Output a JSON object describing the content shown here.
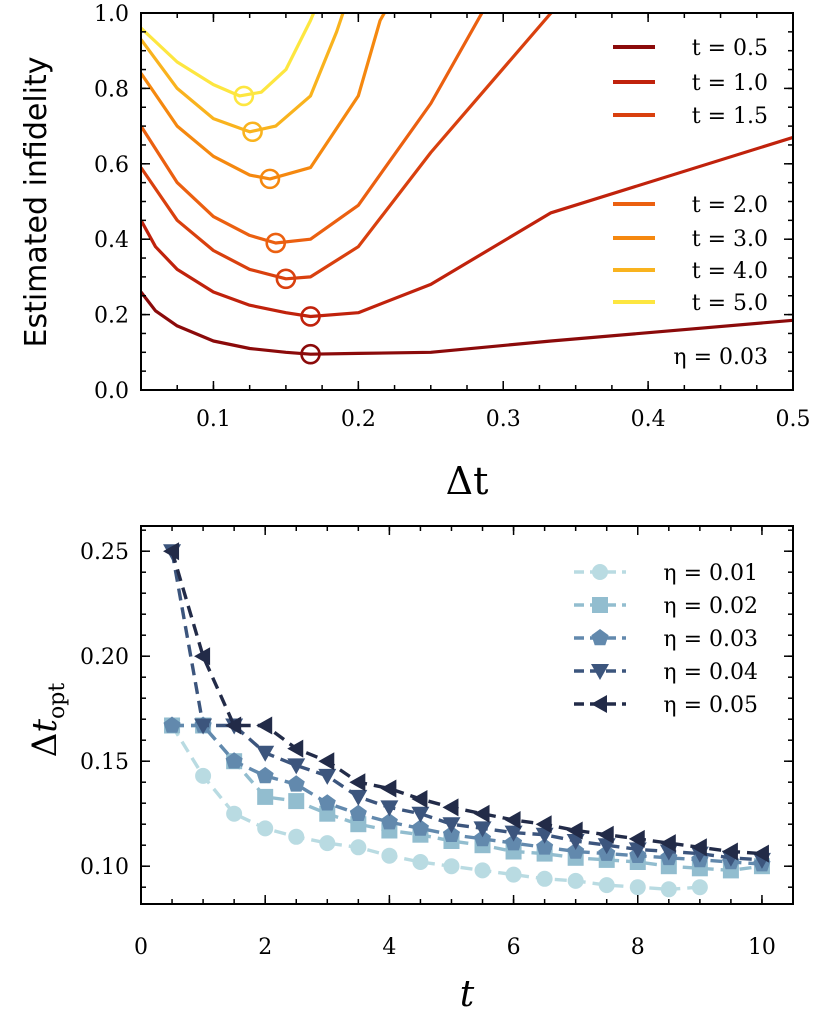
{
  "chart_data": [
    {
      "type": "line",
      "ylabel": "Estimated infidelity",
      "xlabel": "Δt",
      "xlim": [
        0.05,
        0.5
      ],
      "ylim": [
        0.0,
        1.0
      ],
      "xticks": [
        "0.1",
        "0.2",
        "0.3",
        "0.4",
        "0.5"
      ],
      "yticks": [
        "0.0",
        "0.2",
        "0.4",
        "0.6",
        "0.8",
        "1.0"
      ],
      "annotation": "η = 0.03",
      "legend_position": "right",
      "series": [
        {
          "name": "t = 0.5",
          "color": "#8b0a0a",
          "x": [
            0.05,
            0.06,
            0.075,
            0.1,
            0.125,
            0.15,
            0.167,
            0.2,
            0.25,
            0.333,
            0.5
          ],
          "y": [
            0.26,
            0.21,
            0.17,
            0.13,
            0.11,
            0.1,
            0.095,
            0.097,
            0.1,
            0.13,
            0.185
          ],
          "opt": {
            "x": 0.167,
            "y": 0.095
          }
        },
        {
          "name": "t = 1.0",
          "color": "#c0220c",
          "x": [
            0.05,
            0.06,
            0.075,
            0.1,
            0.125,
            0.15,
            0.167,
            0.2,
            0.25,
            0.333,
            0.5
          ],
          "y": [
            0.45,
            0.38,
            0.32,
            0.26,
            0.225,
            0.205,
            0.195,
            0.205,
            0.28,
            0.47,
            0.67
          ],
          "opt": {
            "x": 0.167,
            "y": 0.195
          }
        },
        {
          "name": "t = 1.5",
          "color": "#d9400e",
          "x": [
            0.05,
            0.075,
            0.1,
            0.125,
            0.15,
            0.167,
            0.2,
            0.25,
            0.333,
            0.38
          ],
          "y": [
            0.59,
            0.45,
            0.37,
            0.32,
            0.295,
            0.3,
            0.38,
            0.63,
            1.0,
            1.12
          ],
          "opt": {
            "x": 0.15,
            "y": 0.295
          }
        },
        {
          "name": "t = 2.0",
          "color": "#eb6010",
          "x": [
            0.05,
            0.075,
            0.1,
            0.125,
            0.143,
            0.167,
            0.2,
            0.25,
            0.3
          ],
          "y": [
            0.7,
            0.55,
            0.46,
            0.41,
            0.39,
            0.4,
            0.49,
            0.76,
            1.1
          ],
          "opt": {
            "x": 0.143,
            "y": 0.39
          }
        },
        {
          "name": "t = 3.0",
          "color": "#f5880f",
          "x": [
            0.05,
            0.075,
            0.1,
            0.125,
            0.139,
            0.167,
            0.2,
            0.215,
            0.24
          ],
          "y": [
            0.84,
            0.7,
            0.62,
            0.57,
            0.56,
            0.59,
            0.78,
            0.98,
            1.15
          ],
          "opt": {
            "x": 0.139,
            "y": 0.56
          }
        },
        {
          "name": "t = 4.0",
          "color": "#f9b31e",
          "x": [
            0.05,
            0.075,
            0.1,
            0.125,
            0.143,
            0.167,
            0.185,
            0.2
          ],
          "y": [
            0.93,
            0.8,
            0.72,
            0.685,
            0.7,
            0.78,
            0.95,
            1.12
          ],
          "opt": {
            "x": 0.127,
            "y": 0.685
          }
        },
        {
          "name": "t = 5.0",
          "color": "#fde640",
          "x": [
            0.05,
            0.075,
            0.1,
            0.118,
            0.133,
            0.15,
            0.167,
            0.18
          ],
          "y": [
            0.96,
            0.87,
            0.81,
            0.78,
            0.79,
            0.85,
            0.98,
            1.1
          ],
          "opt": {
            "x": 0.121,
            "y": 0.78
          }
        }
      ]
    },
    {
      "type": "line",
      "ylabel": "Δt_opt",
      "xlabel": "t",
      "xlim": [
        0,
        10.5
      ],
      "ylim": [
        0.082,
        0.262
      ],
      "xticks": [
        "0",
        "2",
        "4",
        "6",
        "8",
        "10"
      ],
      "yticks": [
        "0.10",
        "0.15",
        "0.20",
        "0.25"
      ],
      "legend_position": "top-right",
      "series": [
        {
          "name": "η = 0.01",
          "color": "#b9dbe2",
          "marker": "circle",
          "x": [
            0.5,
            1.0,
            1.5,
            2.0,
            2.5,
            3.0,
            3.5,
            4.0,
            4.5,
            5.0,
            5.5,
            6.0,
            6.5,
            7.0,
            7.5,
            8.0,
            8.5,
            9.0
          ],
          "y": [
            0.167,
            0.143,
            0.125,
            0.118,
            0.114,
            0.111,
            0.109,
            0.105,
            0.102,
            0.1,
            0.098,
            0.096,
            0.094,
            0.093,
            0.091,
            0.09,
            0.089,
            0.09
          ]
        },
        {
          "name": "η = 0.02",
          "color": "#92bdcf",
          "marker": "square",
          "x": [
            0.5,
            1.0,
            1.5,
            2.0,
            2.5,
            3.0,
            3.5,
            4.0,
            4.5,
            5.0,
            5.5,
            6.0,
            6.5,
            7.0,
            7.5,
            8.0,
            8.5,
            9.0,
            9.5,
            10.0
          ],
          "y": [
            0.167,
            0.167,
            0.15,
            0.133,
            0.131,
            0.125,
            0.12,
            0.117,
            0.115,
            0.112,
            0.11,
            0.107,
            0.106,
            0.104,
            0.103,
            0.102,
            0.1,
            0.099,
            0.098,
            0.1
          ]
        },
        {
          "name": "η = 0.03",
          "color": "#6289ad",
          "marker": "pentagon",
          "x": [
            0.5,
            1.0,
            1.5,
            2.0,
            2.5,
            3.0,
            3.5,
            4.0,
            4.5,
            5.0,
            5.5,
            6.0,
            6.5,
            7.0,
            7.5,
            8.0,
            8.5,
            9.0,
            9.5,
            10.0
          ],
          "y": [
            0.167,
            0.167,
            0.15,
            0.143,
            0.139,
            0.13,
            0.125,
            0.121,
            0.118,
            0.115,
            0.113,
            0.111,
            0.109,
            0.107,
            0.106,
            0.105,
            0.104,
            0.103,
            0.102,
            0.101
          ]
        },
        {
          "name": "η = 0.04",
          "color": "#3c557d",
          "marker": "triangle-down",
          "x": [
            0.5,
            1.0,
            1.5,
            2.0,
            2.5,
            3.0,
            3.5,
            4.0,
            4.5,
            5.0,
            5.5,
            6.0,
            6.5,
            7.0,
            7.5,
            8.0,
            8.5,
            9.0,
            9.5,
            10.0
          ],
          "y": [
            0.25,
            0.167,
            0.167,
            0.154,
            0.148,
            0.143,
            0.133,
            0.128,
            0.125,
            0.12,
            0.118,
            0.116,
            0.115,
            0.112,
            0.11,
            0.108,
            0.107,
            0.106,
            0.104,
            0.103
          ]
        },
        {
          "name": "η = 0.05",
          "color": "#222b48",
          "marker": "triangle-left",
          "x": [
            0.5,
            1.0,
            1.5,
            2.0,
            2.5,
            3.0,
            3.5,
            4.0,
            4.5,
            5.0,
            5.5,
            6.0,
            6.5,
            7.0,
            7.5,
            8.0,
            8.5,
            9.0,
            9.5,
            10.0
          ],
          "y": [
            0.25,
            0.2,
            0.167,
            0.167,
            0.156,
            0.15,
            0.14,
            0.137,
            0.132,
            0.128,
            0.125,
            0.122,
            0.12,
            0.117,
            0.115,
            0.113,
            0.111,
            0.109,
            0.107,
            0.106
          ]
        }
      ]
    }
  ]
}
